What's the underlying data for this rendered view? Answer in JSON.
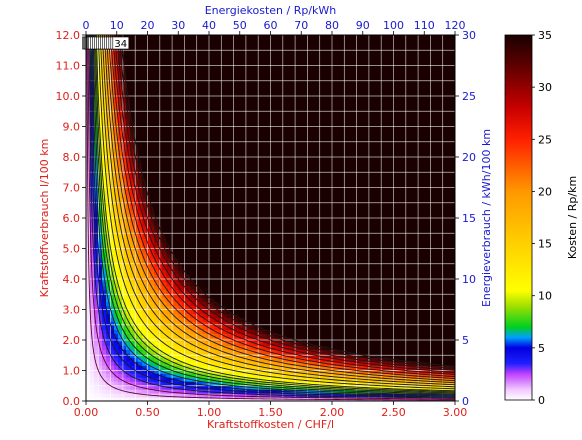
{
  "chart_data": {
    "type": "heatmap",
    "description_model": "cost = fuel_consumption_l_per_100km * fuel_cost_CHF_per_l * 10 (Rp/km)",
    "axes": {
      "x_bottom": {
        "label": "Kraftstoffkosten / CHF/l",
        "range": [
          0,
          3.0
        ],
        "ticks": [
          "0.00",
          "0.50",
          "1.00",
          "1.50",
          "2.00",
          "2.50",
          "3.00"
        ],
        "color": "#e0201a"
      },
      "y_left": {
        "label": "Kraftstoffverbrauch l/100 km",
        "range": [
          0,
          12.0
        ],
        "ticks": [
          "0.0",
          "1.0",
          "2.0",
          "3.0",
          "4.0",
          "5.0",
          "6.0",
          "7.0",
          "8.0",
          "9.0",
          "10.0",
          "11.0",
          "12.0"
        ],
        "color": "#e0201a"
      },
      "x_top": {
        "label": "Energiekosten / Rp/kWh",
        "range": [
          0,
          120
        ],
        "ticks": [
          "0",
          "10",
          "20",
          "30",
          "40",
          "50",
          "60",
          "70",
          "80",
          "90",
          "100",
          "110",
          "120"
        ],
        "color": "#1a1ad0"
      },
      "y_right": {
        "label": "Energieverbrauch / kWh/100 km",
        "range": [
          0,
          30
        ],
        "ticks": [
          "0",
          "5",
          "10",
          "15",
          "20",
          "25",
          "30"
        ],
        "color": "#1a1ad0"
      }
    },
    "contour_levels": [
      1,
      2,
      3,
      4,
      5,
      6,
      7,
      8,
      9,
      10,
      12,
      14,
      16,
      18,
      20,
      22,
      24,
      26,
      28,
      30,
      32,
      34
    ],
    "colorbar": {
      "label": "Kosten / Rp/km",
      "range": [
        0,
        35
      ],
      "ticks": [
        "0",
        "5",
        "10",
        "15",
        "20",
        "25",
        "30",
        "35"
      ],
      "stops": [
        {
          "v": 0,
          "c": "#ffffff"
        },
        {
          "v": 1,
          "c": "#f0c8ff"
        },
        {
          "v": 2.5,
          "c": "#c040ff"
        },
        {
          "v": 3.5,
          "c": "#2020ff"
        },
        {
          "v": 5,
          "c": "#0000e0"
        },
        {
          "v": 6,
          "c": "#00a0ff"
        },
        {
          "v": 7,
          "c": "#00d020"
        },
        {
          "v": 9,
          "c": "#a0e000"
        },
        {
          "v": 10.5,
          "c": "#ffff00"
        },
        {
          "v": 15,
          "c": "#ffd000"
        },
        {
          "v": 20,
          "c": "#ff9800"
        },
        {
          "v": 25,
          "c": "#ff2000"
        },
        {
          "v": 28,
          "c": "#c80000"
        },
        {
          "v": 32,
          "c": "#600000"
        },
        {
          "v": 35,
          "c": "#1a0000"
        }
      ]
    },
    "grid": true
  }
}
